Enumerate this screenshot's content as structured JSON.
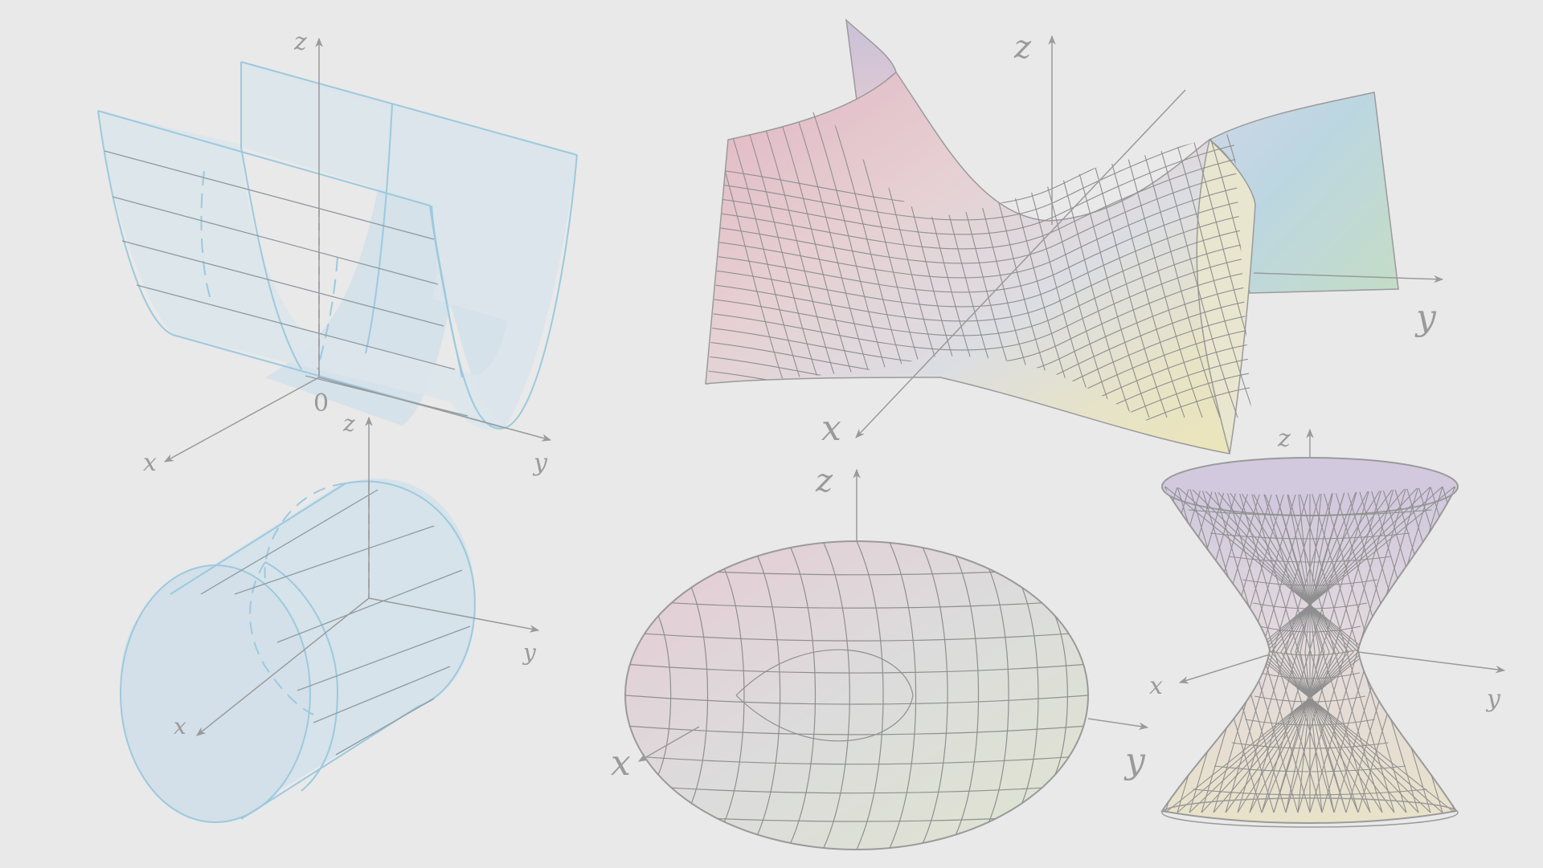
{
  "figures": {
    "parabolic_cylinder": {
      "axes": {
        "z": "z",
        "x": "x",
        "y": "y",
        "origin": "0"
      }
    },
    "circular_cylinder": {
      "axes": {
        "z": "z",
        "x": "x",
        "y": "y"
      }
    },
    "hyperbolic_paraboloid": {
      "axes": {
        "z": "z",
        "x": "x",
        "y": "y"
      }
    },
    "ellipsoid": {
      "axes": {
        "z": "z",
        "x": "x",
        "y": "y"
      }
    },
    "hyperboloid_one_sheet": {
      "axes": {
        "z": "z",
        "x": "x",
        "y": "y"
      }
    }
  },
  "colors": {
    "background": "#e9e9e9",
    "axis": "#9a9a9a",
    "cylinder_stroke": "#9cc9de",
    "cylinder_fill": "#d6e3ea",
    "mesh_stroke": "#9a9a9a"
  }
}
